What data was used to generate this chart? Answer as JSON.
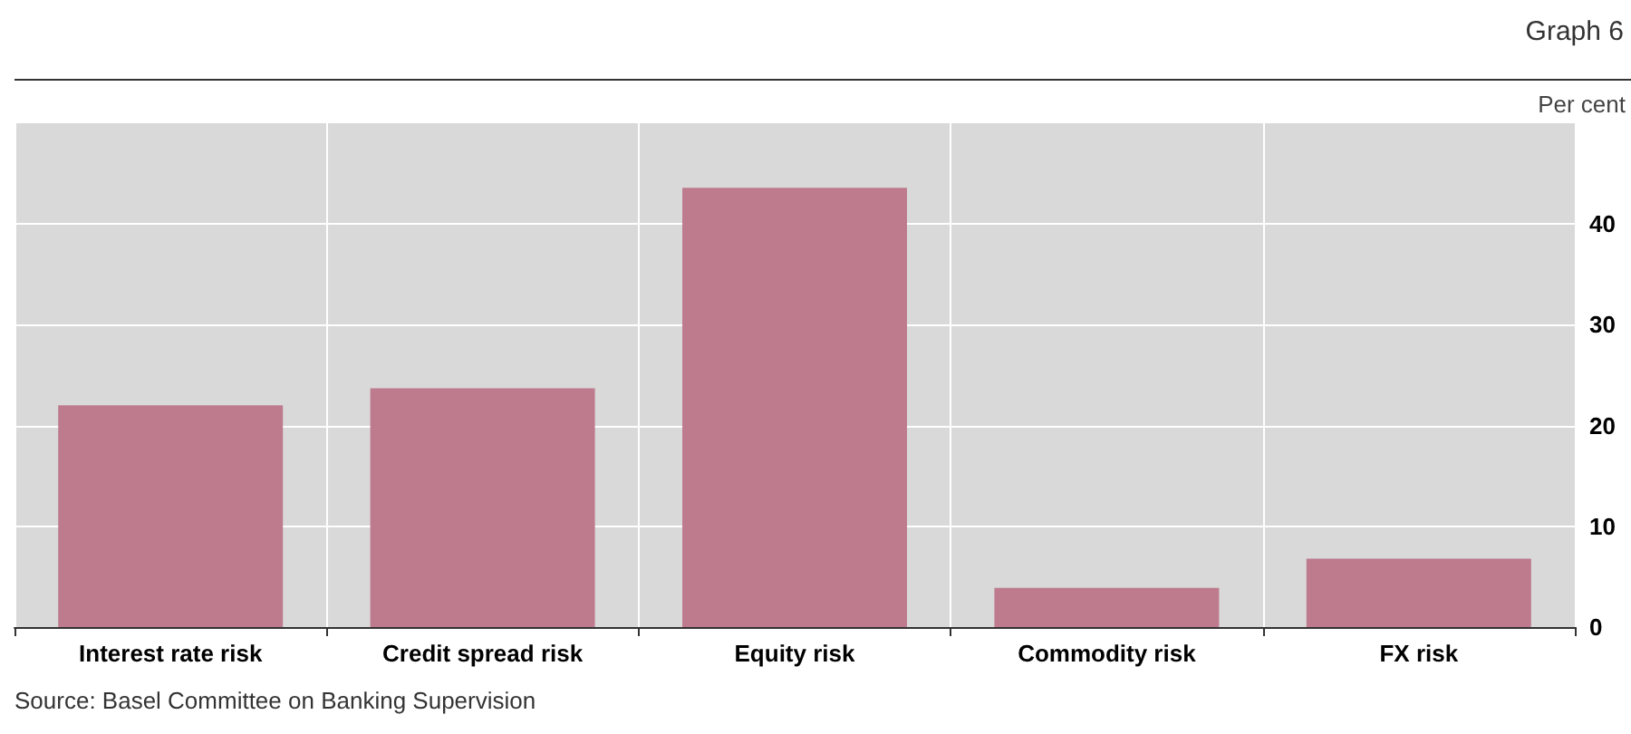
{
  "chart_data": {
    "type": "bar",
    "title": "Graph 6",
    "ylabel": "Per cent",
    "categories": [
      "Interest rate risk",
      "Credit spread risk",
      "Equity risk",
      "Commodity risk",
      "FX risk"
    ],
    "values": [
      22,
      23.7,
      43.6,
      3.9,
      6.8
    ],
    "color": "#bd7b8d",
    "ylim": [
      0,
      50
    ],
    "yticks": [
      0,
      10,
      20,
      30,
      40
    ],
    "grid": true,
    "annotations": [
      "Source: Basel Committee on Banking Supervision"
    ]
  }
}
